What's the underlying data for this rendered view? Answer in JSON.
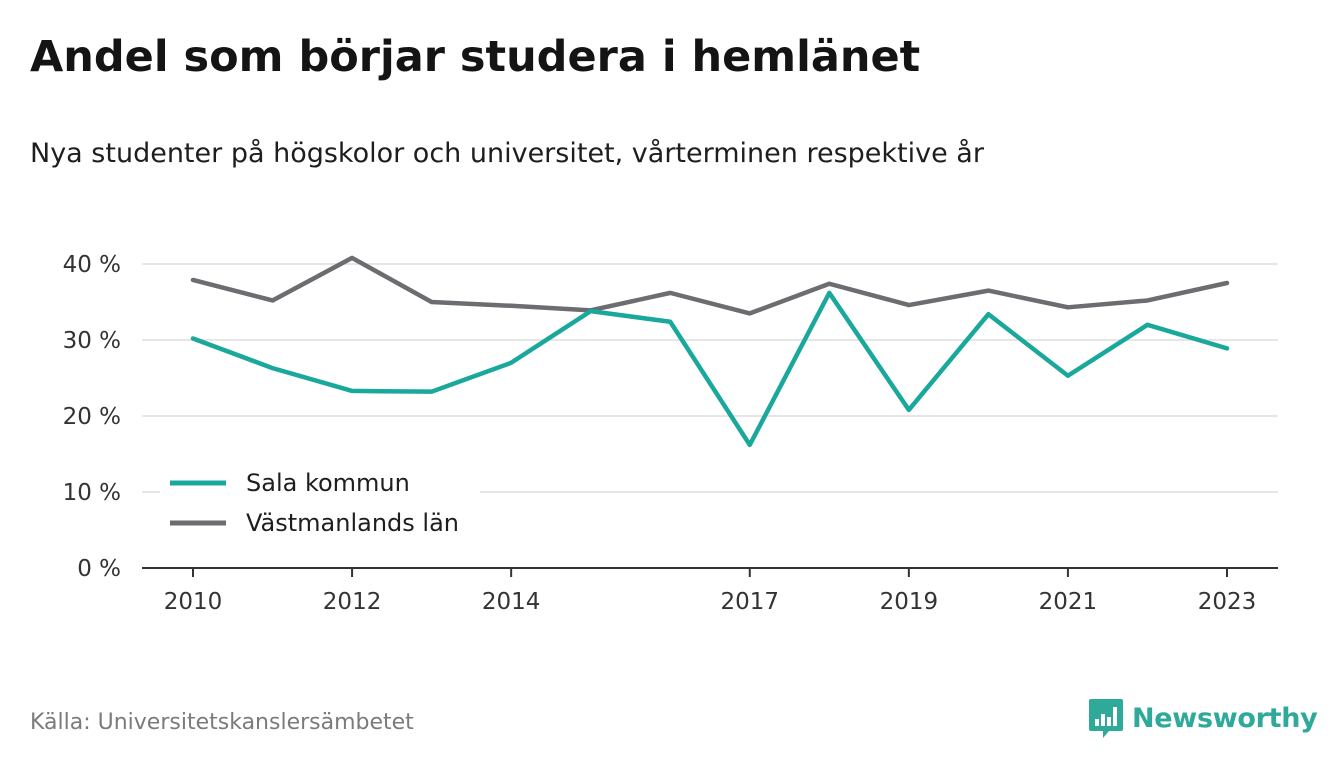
{
  "title": "Andel som börjar studera i hemlänet",
  "subtitle": "Nya studenter på högskolor och universitet, vårterminen respektive år",
  "source": "Källa: Universitetskanslersämbetet",
  "brand": {
    "name": "Newsworthy",
    "icon": "newsworthy-logo-icon",
    "color": "#2ea99a"
  },
  "chart_data": {
    "type": "line",
    "x": [
      2010,
      2011,
      2012,
      2013,
      2014,
      2015,
      2016,
      2017,
      2018,
      2019,
      2020,
      2021,
      2022,
      2023
    ],
    "x_tick_labels": [
      "2010",
      "2012",
      "2014",
      "2017",
      "2019",
      "2021",
      "2023"
    ],
    "y_tick_labels": [
      "0 %",
      "10 %",
      "20 %",
      "30 %",
      "40 %"
    ],
    "ylim": [
      0,
      40
    ],
    "grid": true,
    "legend_position": "bottom-left",
    "series": [
      {
        "name": "Sala kommun",
        "color": "#1aa89c",
        "values": [
          30.2,
          26.3,
          23.3,
          23.2,
          27.0,
          33.8,
          32.4,
          16.2,
          36.2,
          20.8,
          33.4,
          25.3,
          32.0,
          28.9
        ]
      },
      {
        "name": "Västmanlands län",
        "color": "#6d6c70",
        "values": [
          37.9,
          35.2,
          40.8,
          35.0,
          34.5,
          33.9,
          36.2,
          33.5,
          37.4,
          34.6,
          36.5,
          34.3,
          35.2,
          37.5
        ]
      }
    ]
  }
}
